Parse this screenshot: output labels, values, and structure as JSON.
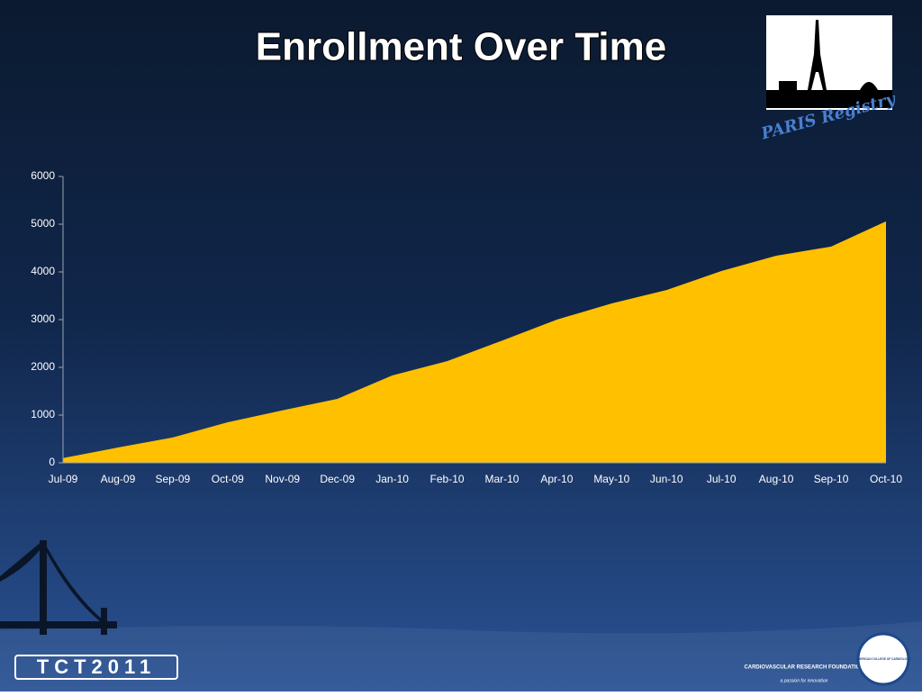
{
  "chart_data": {
    "type": "area",
    "title": "Enrollment Over Time",
    "categories": [
      "Jul-09",
      "Aug-09",
      "Sep-09",
      "Oct-09",
      "Nov-09",
      "Dec-09",
      "Jan-10",
      "Feb-10",
      "Mar-10",
      "Apr-10",
      "May-10",
      "Jun-10",
      "Jul-10",
      "Aug-10",
      "Sep-10",
      "Oct-10"
    ],
    "values": [
      100,
      320,
      530,
      850,
      1100,
      1340,
      1830,
      2130,
      2560,
      3000,
      3340,
      3620,
      4020,
      4340,
      4530,
      5060
    ],
    "color": "#ffc000",
    "ylim": [
      0,
      6000
    ],
    "yticks": [
      0,
      1000,
      2000,
      3000,
      4000,
      5000,
      6000
    ],
    "grid": false
  },
  "logos": {
    "registry": "PARIS Registry",
    "conference": "TCT2011",
    "foundation": "CARDIOVASCULAR RESEARCH FOUNDATION",
    "foundation_tagline": "a passion for innovation",
    "college": "AMERICAN COLLEGE OF CARDIOLOGY"
  }
}
